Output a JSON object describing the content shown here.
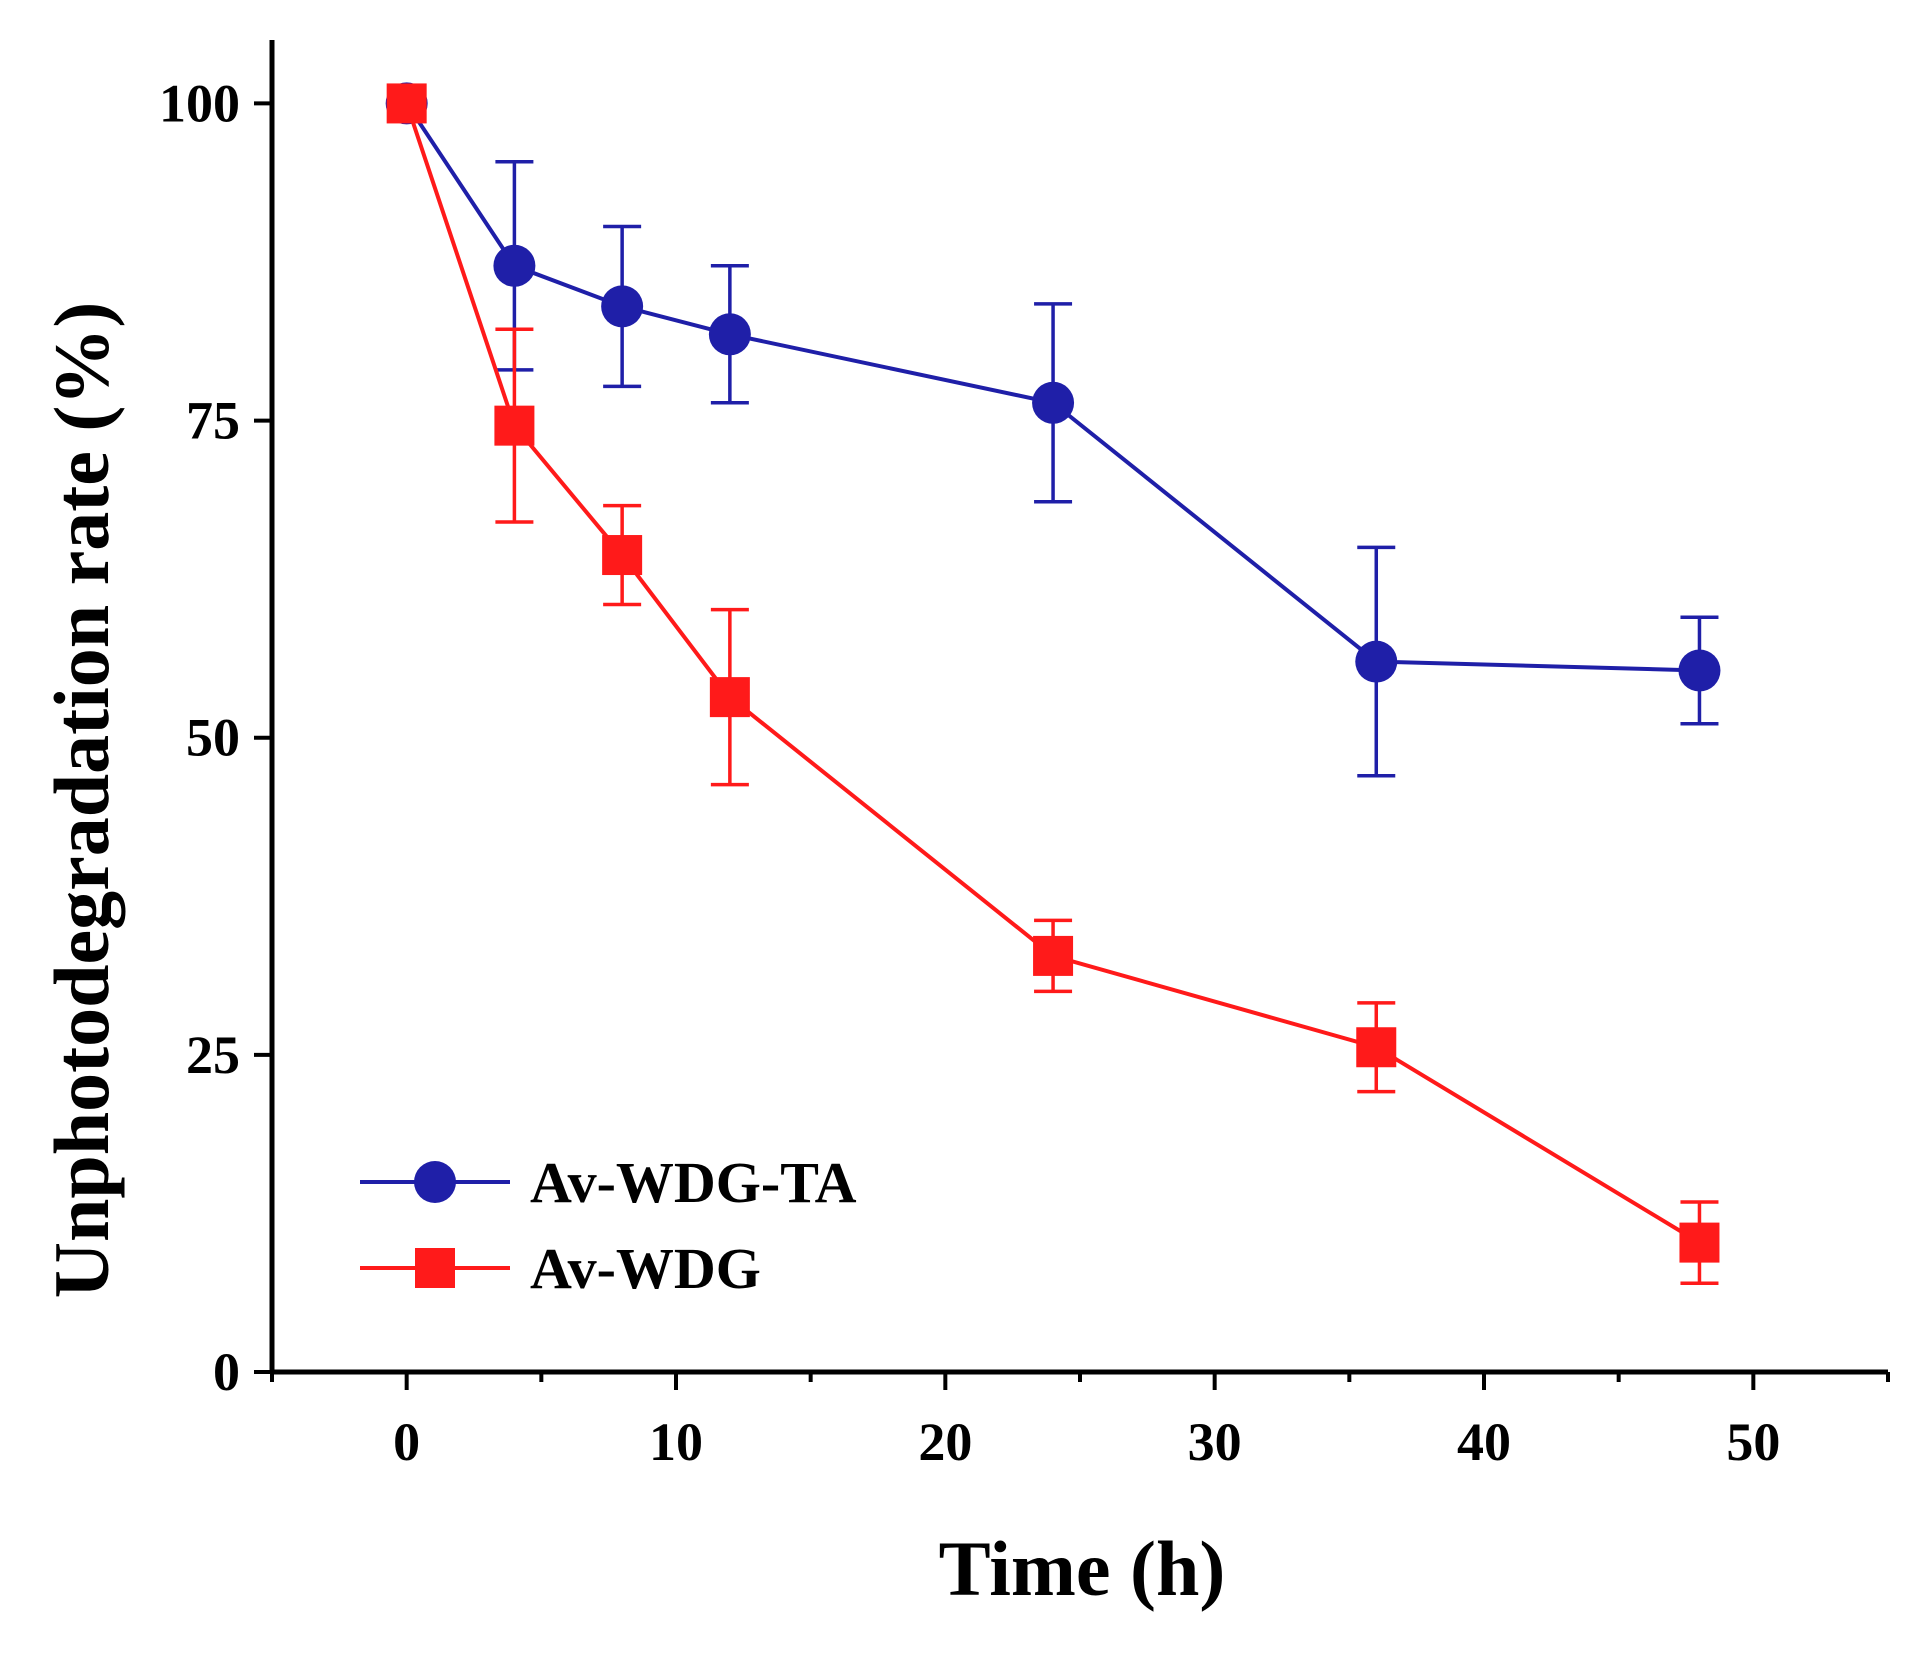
{
  "chart_data": {
    "type": "line",
    "title": "",
    "xlabel": "Time (h)",
    "ylabel": "Unphotodegradation rate (%)",
    "xlim": [
      -5,
      55
    ],
    "ylim": [
      0,
      105
    ],
    "xticks": [
      0,
      10,
      20,
      30,
      40,
      50
    ],
    "yticks": [
      0,
      25,
      50,
      75,
      100
    ],
    "xtick_labels": [
      "0",
      "10",
      "20",
      "30",
      "40",
      "50"
    ],
    "ytick_labels": [
      "0",
      "25",
      "50",
      "75",
      "100"
    ],
    "grid": false,
    "legend_position": "bottom-left",
    "series": [
      {
        "name": "Av-WDG-TA",
        "color": "#1f1fa8",
        "marker": "circle",
        "x": [
          0,
          4,
          8,
          12,
          24,
          36,
          48
        ],
        "y": [
          100,
          87.2,
          84.0,
          81.8,
          76.4,
          56.0,
          55.3
        ],
        "error": [
          1.2,
          8.2,
          6.3,
          5.4,
          7.8,
          9.0,
          4.2
        ]
      },
      {
        "name": "Av-WDG",
        "color": "#ff1a1a",
        "marker": "square",
        "x": [
          0,
          4,
          8,
          12,
          24,
          36,
          48
        ],
        "y": [
          100,
          74.6,
          64.4,
          53.2,
          32.8,
          25.6,
          10.2
        ],
        "error": [
          0.5,
          7.6,
          3.9,
          6.9,
          2.8,
          3.5,
          3.2
        ]
      }
    ]
  }
}
